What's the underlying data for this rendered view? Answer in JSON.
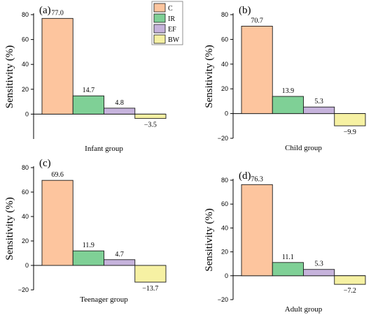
{
  "chart_data": [
    {
      "type": "bar",
      "panel_label": "(a)",
      "xlabel": "Infant group",
      "ylabel": "Sensitivity (%)",
      "categories": [
        "C",
        "IR",
        "EF",
        "BW"
      ],
      "values": [
        77.0,
        14.7,
        4.8,
        -3.5
      ],
      "data_labels": [
        "77.0",
        "14.7",
        "4.8",
        "−3.5"
      ],
      "ylim": [
        -20,
        80
      ],
      "yticks": [
        0,
        20,
        40,
        60,
        80
      ],
      "ytick_labels": [
        "0",
        "20",
        "40",
        "60",
        "80"
      ],
      "legend": true,
      "legend_position": "top-right"
    },
    {
      "type": "bar",
      "panel_label": "(b)",
      "xlabel": "Child group",
      "ylabel": "Sensitivity (%)",
      "categories": [
        "C",
        "IR",
        "EF",
        "BW"
      ],
      "values": [
        70.7,
        13.9,
        5.3,
        -9.9
      ],
      "data_labels": [
        "70.7",
        "13.9",
        "5.3",
        "−9.9"
      ],
      "ylim": [
        -20,
        80
      ],
      "yticks": [
        -20,
        0,
        20,
        40,
        60,
        80
      ],
      "ytick_labels": [
        "−20",
        "0",
        "20",
        "40",
        "60",
        "80"
      ],
      "legend": false
    },
    {
      "type": "bar",
      "panel_label": "(c)",
      "xlabel": "Teenager group",
      "ylabel": "Sensitivity (%)",
      "categories": [
        "C",
        "IR",
        "EF",
        "BW"
      ],
      "values": [
        69.6,
        11.9,
        4.7,
        -13.7
      ],
      "data_labels": [
        "69.6",
        "11.9",
        "4.7",
        "−13.7"
      ],
      "ylim": [
        -20,
        80
      ],
      "yticks": [
        -20,
        0,
        20,
        40,
        60,
        80
      ],
      "ytick_labels": [
        "−20",
        "0",
        "20",
        "40",
        "60",
        "80"
      ],
      "legend": false
    },
    {
      "type": "bar",
      "panel_label": "(d)",
      "xlabel": "Adult group",
      "ylabel": "Sensitivity (%)",
      "categories": [
        "C",
        "IR",
        "EF",
        "BW"
      ],
      "values": [
        76.3,
        11.1,
        5.3,
        -7.2
      ],
      "data_labels": [
        "76.3",
        "11.1",
        "5.3",
        "−7.2"
      ],
      "ylim": [
        -20,
        80
      ],
      "yticks": [
        -20,
        0,
        20,
        40,
        60,
        80
      ],
      "ytick_labels": [
        "−20",
        "0",
        "20",
        "40",
        "60",
        "80"
      ],
      "legend": false
    }
  ],
  "legend": {
    "entries": [
      {
        "label": "C",
        "color": "#FDC59E"
      },
      {
        "label": "IR",
        "color": "#7FD096"
      },
      {
        "label": "EF",
        "color": "#C6B3DC"
      },
      {
        "label": "BW",
        "color": "#F6F1A3"
      }
    ]
  },
  "colors": {
    "bar_stroke": "#1a1a1a",
    "axis": "#000000",
    "text": "#000000"
  }
}
